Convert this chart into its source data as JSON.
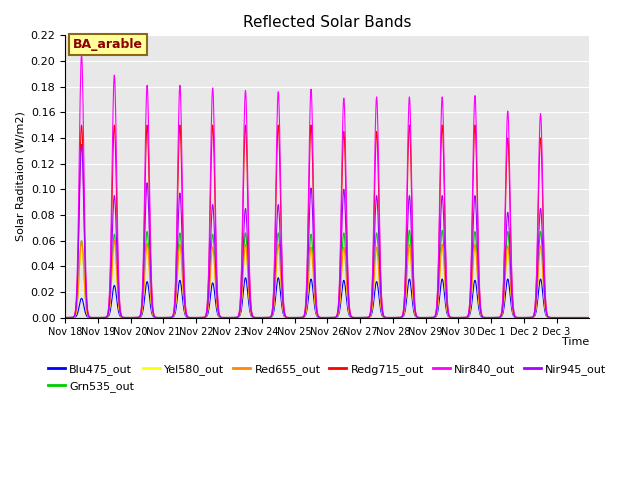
{
  "title": "Reflected Solar Bands",
  "ylabel": "Solar Raditaion (W/m2)",
  "xlabel": "Time",
  "annotation_text": "BA_arable",
  "ylim": [
    0,
    0.22
  ],
  "background_color": "#e8e8e8",
  "xtick_labels": [
    "Nov 18",
    "Nov 19",
    "Nov 20",
    "Nov 21",
    "Nov 22",
    "Nov 23",
    "Nov 24",
    "Nov 25",
    "Nov 26",
    "Nov 27",
    "Nov 28",
    "Nov 29",
    "Nov 30",
    "Dec 1",
    "Dec 2",
    "Dec 3"
  ],
  "series": [
    {
      "name": "Blu475_out",
      "color": "#0000ff"
    },
    {
      "name": "Grn535_out",
      "color": "#00cc00"
    },
    {
      "name": "Yel580_out",
      "color": "#ffff00"
    },
    {
      "name": "Red655_out",
      "color": "#ff8800"
    },
    {
      "name": "Redg715_out",
      "color": "#ff0000"
    },
    {
      "name": "Nir840_out",
      "color": "#ff00ff"
    },
    {
      "name": "Nir945_out",
      "color": "#aa00ff"
    }
  ],
  "n_days": 16,
  "pts_per_day": 96,
  "peak_values": {
    "Blu475_out": [
      0.015,
      0.025,
      0.028,
      0.029,
      0.027,
      0.031,
      0.031,
      0.03,
      0.029,
      0.028,
      0.03,
      0.03,
      0.029,
      0.03,
      0.03,
      0.0
    ],
    "Grn535_out": [
      0.06,
      0.065,
      0.067,
      0.066,
      0.065,
      0.066,
      0.066,
      0.065,
      0.066,
      0.066,
      0.068,
      0.068,
      0.067,
      0.067,
      0.067,
      0.0
    ],
    "Yel580_out": [
      0.055,
      0.056,
      0.055,
      0.054,
      0.053,
      0.055,
      0.055,
      0.052,
      0.052,
      0.052,
      0.054,
      0.054,
      0.054,
      0.053,
      0.053,
      0.0
    ],
    "Red655_out": [
      0.06,
      0.06,
      0.058,
      0.057,
      0.055,
      0.057,
      0.057,
      0.055,
      0.055,
      0.055,
      0.057,
      0.057,
      0.057,
      0.056,
      0.056,
      0.0
    ],
    "Redg715_out": [
      0.15,
      0.15,
      0.15,
      0.15,
      0.15,
      0.15,
      0.15,
      0.15,
      0.145,
      0.145,
      0.15,
      0.15,
      0.15,
      0.14,
      0.14,
      0.0
    ],
    "Nir840_out": [
      0.205,
      0.189,
      0.181,
      0.181,
      0.179,
      0.177,
      0.176,
      0.178,
      0.171,
      0.172,
      0.172,
      0.172,
      0.173,
      0.161,
      0.159,
      0.0
    ],
    "Nir945_out": [
      0.135,
      0.095,
      0.105,
      0.097,
      0.088,
      0.085,
      0.088,
      0.101,
      0.1,
      0.095,
      0.095,
      0.095,
      0.095,
      0.082,
      0.085,
      0.0
    ]
  }
}
